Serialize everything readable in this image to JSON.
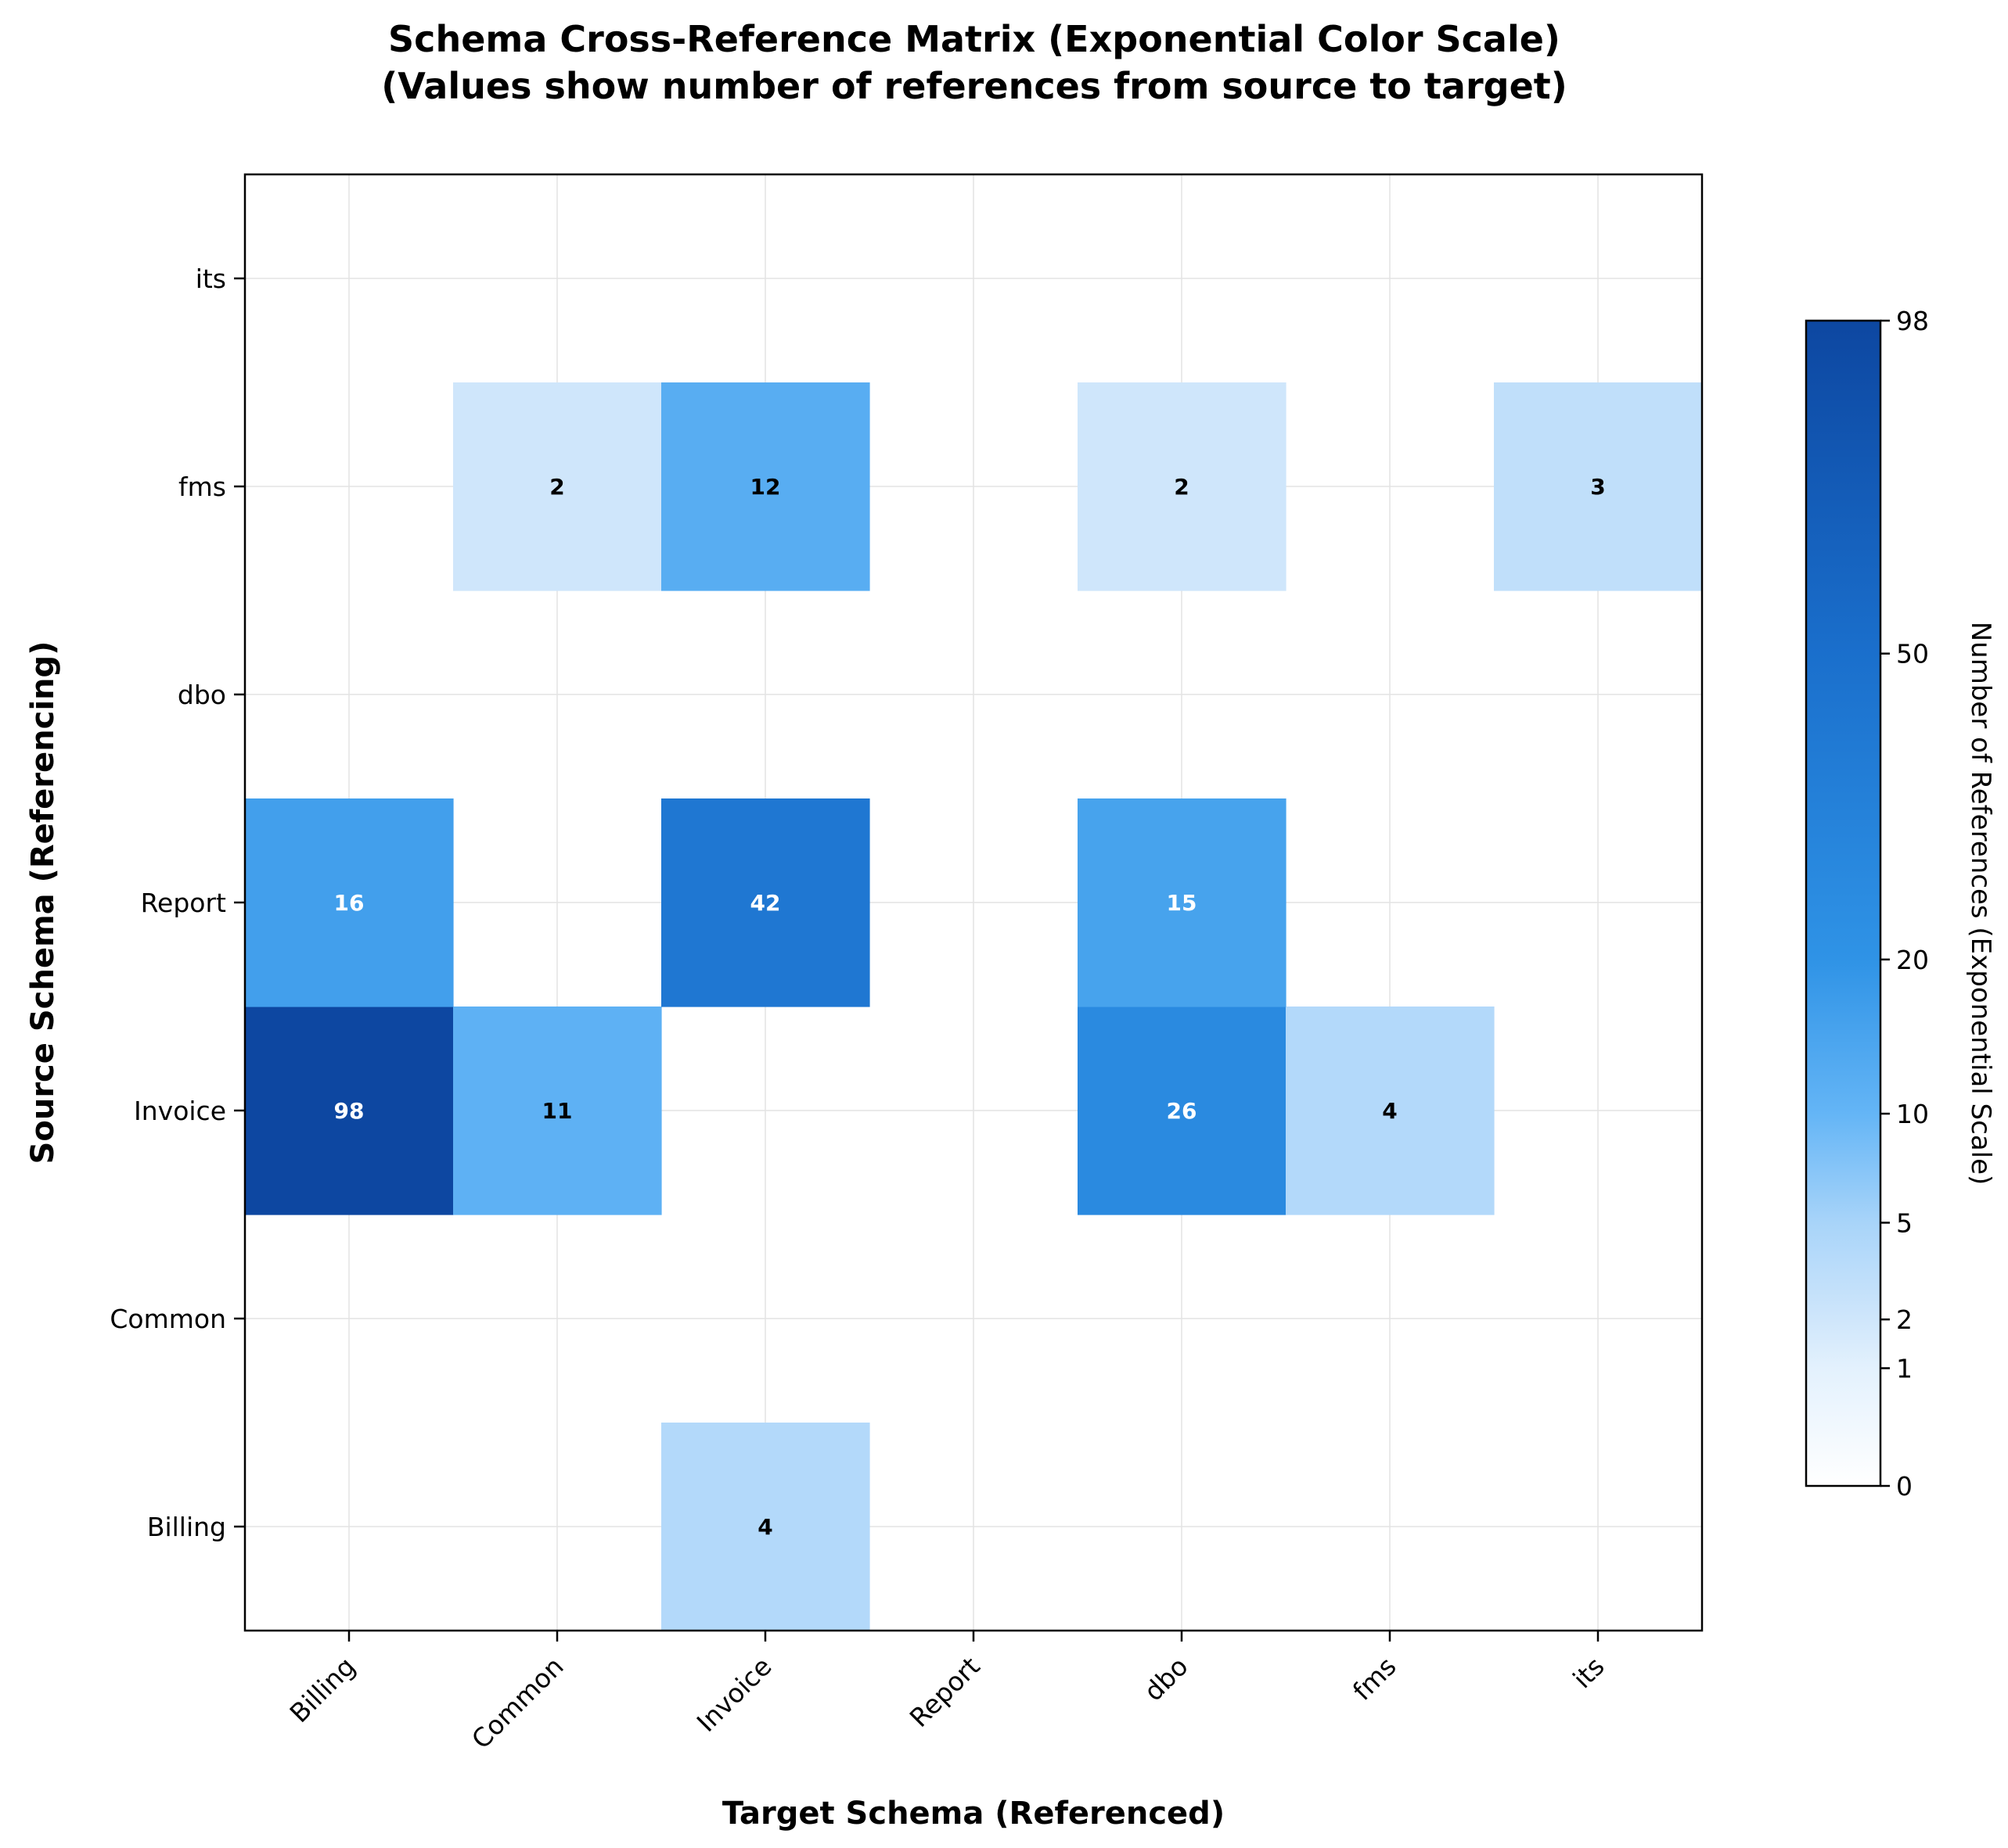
{
  "chart_data": {
    "type": "heatmap",
    "title": "Schema Cross-Reference Matrix (Exponential Color Scale)",
    "subtitle": "(Values show number of references from source to target)",
    "xlabel": "Target Schema (Referenced)",
    "ylabel": "Source Schema (Referencing)",
    "x_categories": [
      "Billing",
      "Common",
      "Invoice",
      "Report",
      "dbo",
      "fms",
      "its"
    ],
    "y_categories": [
      "Billing",
      "Common",
      "Invoice",
      "Report",
      "dbo",
      "fms",
      "its"
    ],
    "y_order": "bottom-to-top",
    "values": [
      [
        0,
        0,
        4,
        0,
        0,
        0,
        0
      ],
      [
        0,
        0,
        0,
        0,
        0,
        0,
        0
      ],
      [
        98,
        11,
        0,
        0,
        26,
        4,
        0
      ],
      [
        16,
        0,
        42,
        0,
        15,
        0,
        0
      ],
      [
        0,
        0,
        0,
        0,
        0,
        0,
        0
      ],
      [
        0,
        2,
        12,
        0,
        2,
        0,
        3
      ],
      [
        0,
        0,
        0,
        0,
        0,
        0,
        0
      ]
    ],
    "colorbar": {
      "label": "Number of References (Exponential Scale)",
      "ticks": [
        0,
        1,
        2,
        5,
        10,
        20,
        50,
        98
      ],
      "min": 0,
      "max": 98,
      "colors": [
        "#ffffff",
        "#e3f1fd",
        "#cfe6fb",
        "#a8d4f9",
        "#64b5f6",
        "#2f93e6",
        "#1a6fcc",
        "#0d47a1"
      ]
    },
    "grid": true,
    "legend": "none"
  }
}
